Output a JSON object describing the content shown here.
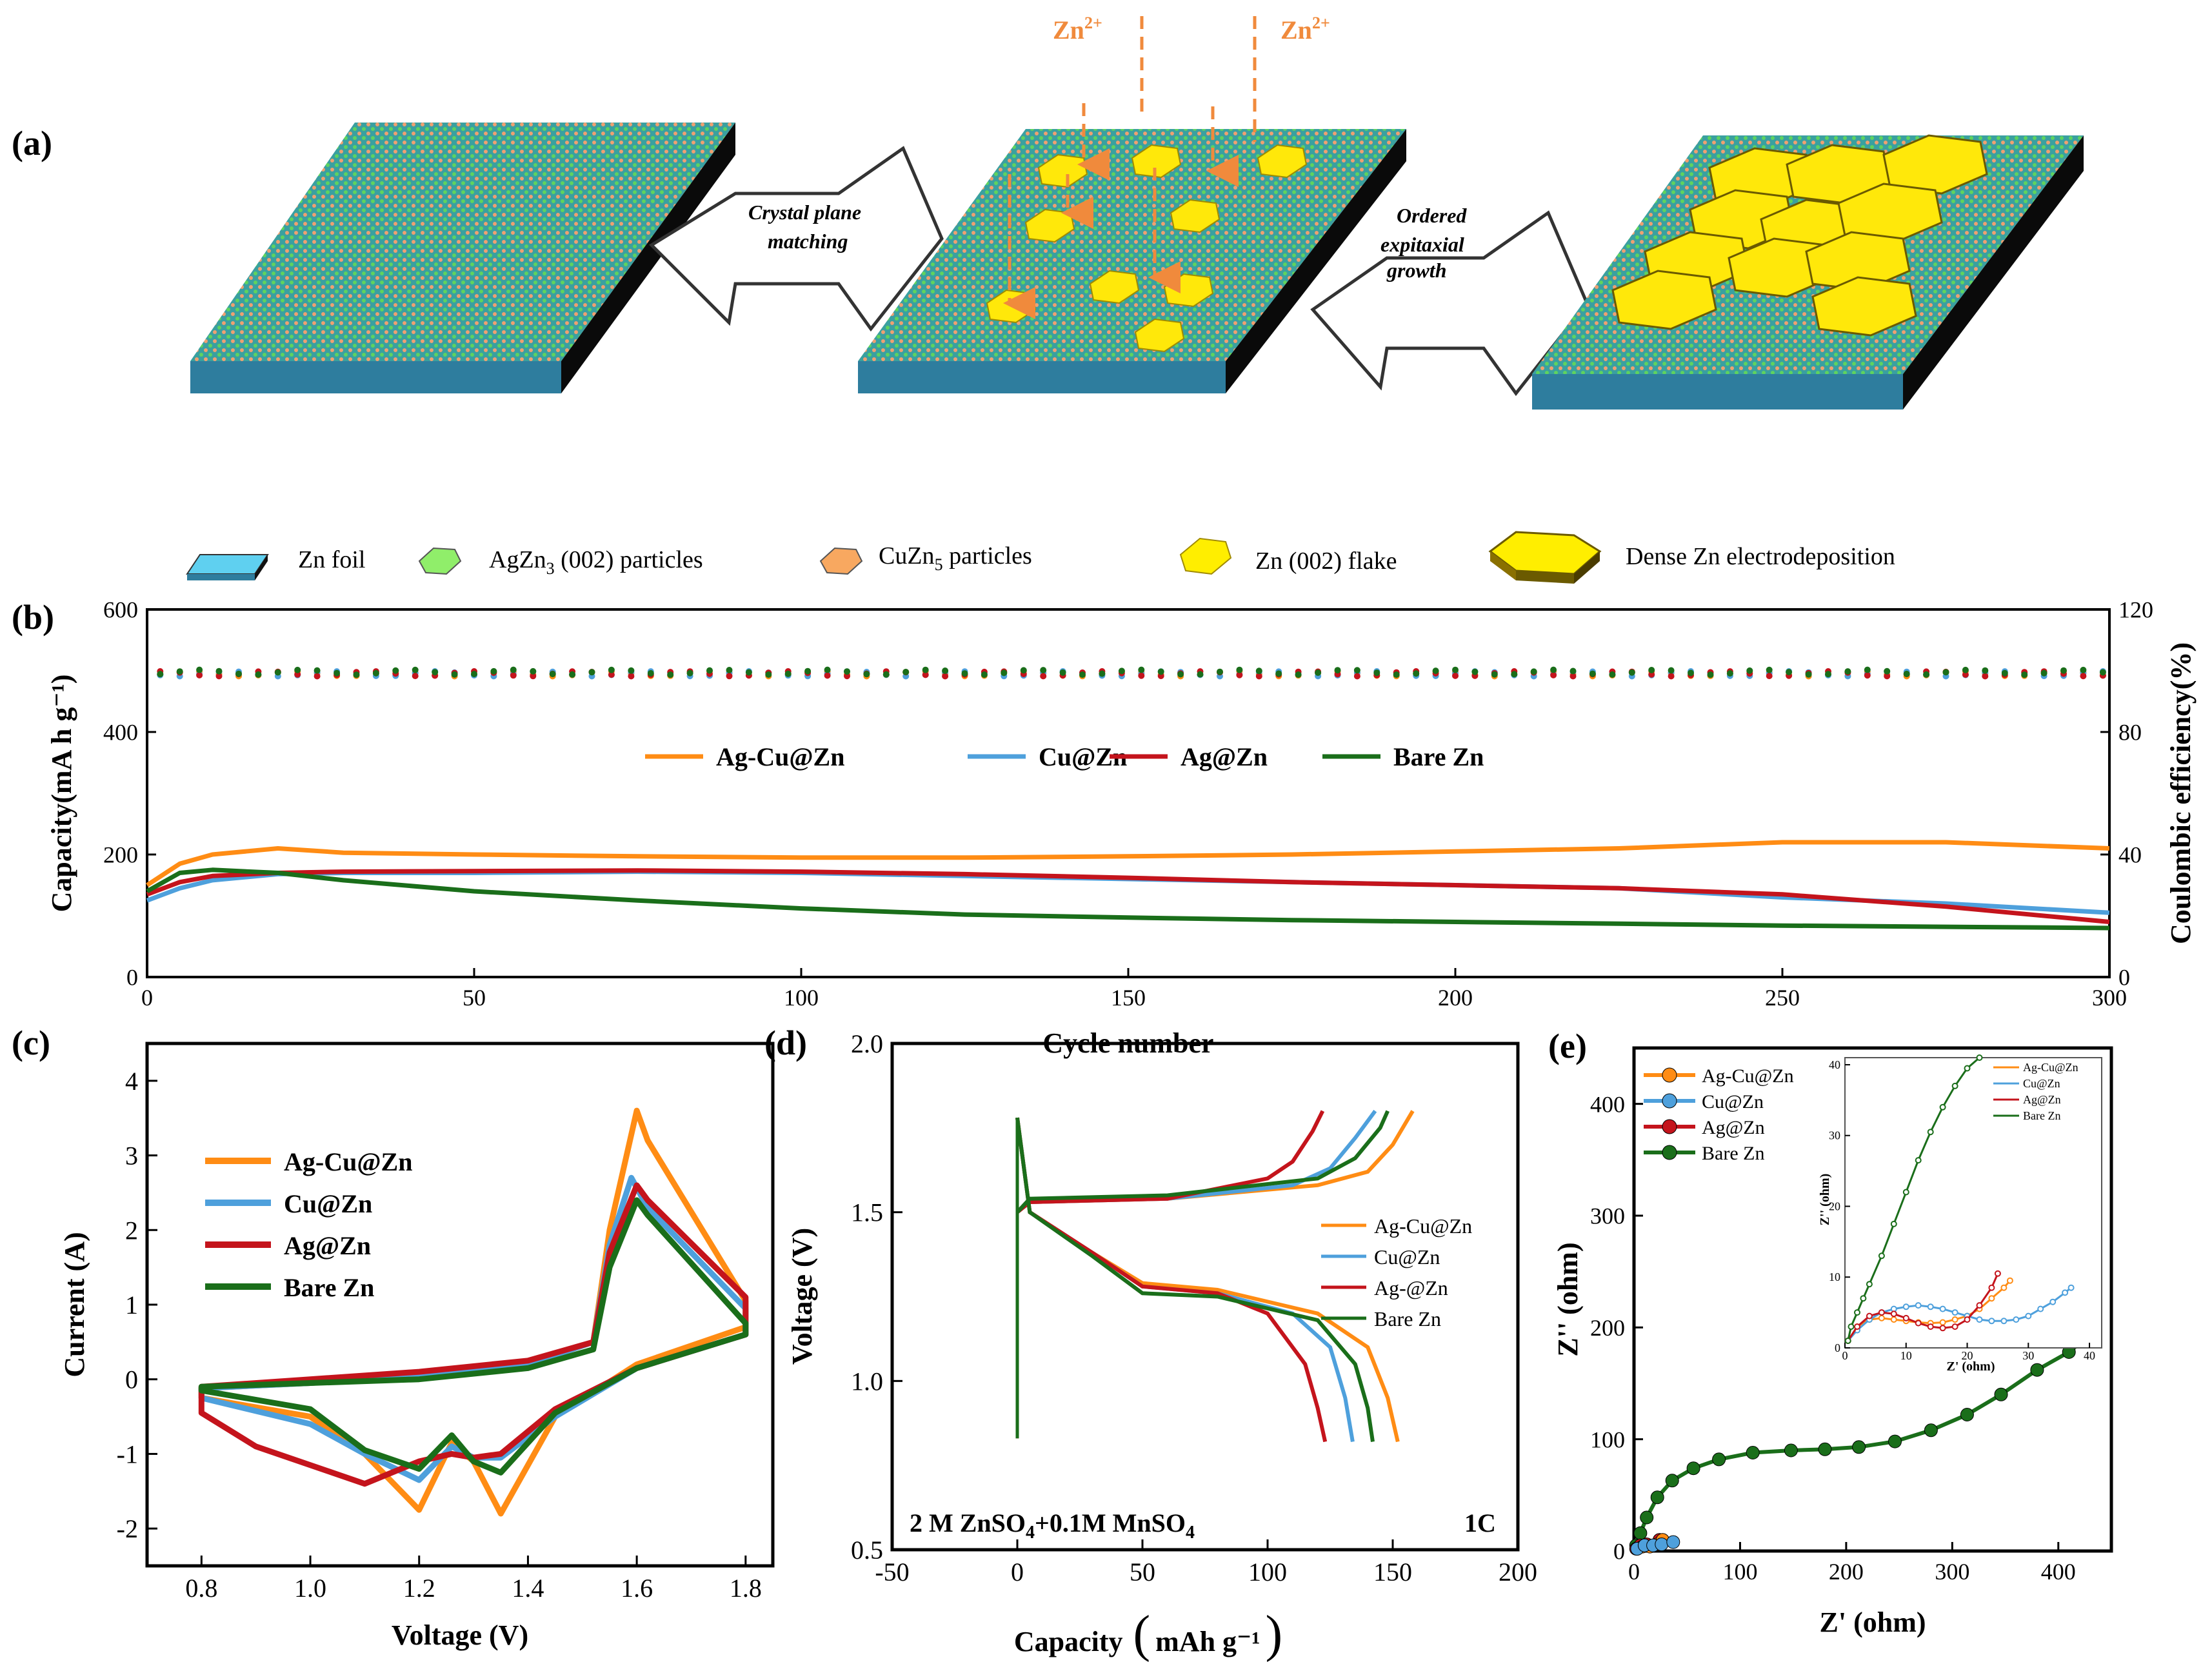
{
  "colors": {
    "ag_cu_zn": "#ff8c14",
    "cu_zn": "#4ea0dc",
    "ag_zn": "#c4141c",
    "bare_zn": "#1a6e1a",
    "zn_ion": "#f08a3c",
    "flake": "#ffee00"
  },
  "schematic": {
    "panel_label": "(a)",
    "zn_ion_1": "Zn",
    "zn_ion_2": "Zn",
    "zn_ion_charge": "2+",
    "step1_line1": "Crystal plane",
    "step1_line2": "matching",
    "step2_line1": "Ordered",
    "step2_line2": "expitaxial",
    "step2_line3": "growth",
    "legend": {
      "zn_foil": "Zn foil",
      "agzn3_pre": "AgZn",
      "agzn3_sub": "3",
      "agzn3_post": " (002) particles",
      "cuzn5_pre": "CuZn",
      "cuzn5_sub": "5",
      "cuzn5_post": " particles",
      "zn_flake": "Zn  (002) flake",
      "dense": "Dense Zn electrodeposition"
    },
    "icons": [
      "zn-foil-icon",
      "agzn3-particle-icon",
      "cuzn5-particle-icon",
      "zn-flake-icon",
      "dense-deposit-icon"
    ]
  },
  "chart_data": [
    {
      "panel": "(b)",
      "type": "line",
      "xlabel": "Cycle number",
      "ylabel_left": "Capacity(mA h g⁻¹)",
      "ylabel_right": "Coulombic efficiency(%)",
      "xlim": [
        0,
        300
      ],
      "ylim_left": [
        0,
        600
      ],
      "ylim_right": [
        0,
        120
      ],
      "xticks": [
        "0",
        "50",
        "100",
        "150",
        "200",
        "250",
        "300"
      ],
      "yticks_left": [
        "0",
        "200",
        "400",
        "600"
      ],
      "yticks_right": [
        "0",
        "40",
        "80",
        "120"
      ],
      "legend": [
        "Ag-Cu@Zn",
        "Cu@Zn",
        "Ag@Zn",
        "Bare Zn"
      ],
      "series": [
        {
          "name": "Ag-Cu@Zn",
          "x": [
            0,
            5,
            10,
            20,
            30,
            50,
            75,
            100,
            125,
            150,
            175,
            200,
            225,
            250,
            275,
            300
          ],
          "values": [
            150,
            185,
            200,
            210,
            203,
            200,
            197,
            195,
            195,
            197,
            200,
            205,
            210,
            220,
            220,
            210
          ]
        },
        {
          "name": "Cu@Zn",
          "x": [
            0,
            5,
            10,
            20,
            30,
            50,
            75,
            100,
            125,
            150,
            175,
            200,
            225,
            250,
            275,
            300
          ],
          "values": [
            125,
            145,
            158,
            168,
            170,
            170,
            172,
            170,
            165,
            160,
            155,
            150,
            145,
            130,
            120,
            105
          ]
        },
        {
          "name": "Ag@Zn",
          "x": [
            0,
            5,
            10,
            20,
            30,
            50,
            75,
            100,
            125,
            150,
            175,
            200,
            225,
            250,
            275,
            300
          ],
          "values": [
            135,
            155,
            165,
            170,
            172,
            173,
            174,
            172,
            168,
            162,
            155,
            150,
            145,
            135,
            115,
            90
          ]
        },
        {
          "name": "Bare Zn",
          "x": [
            0,
            5,
            10,
            20,
            30,
            50,
            75,
            100,
            125,
            150,
            175,
            200,
            225,
            250,
            275,
            300
          ],
          "values": [
            140,
            170,
            175,
            170,
            158,
            140,
            125,
            112,
            102,
            97,
            93,
            90,
            87,
            84,
            82,
            80
          ]
        }
      ],
      "ce_series": [
        {
          "name": "Ag-Cu@Zn",
          "ce_percent": 99
        },
        {
          "name": "Cu@Zn",
          "ce_percent": 99
        },
        {
          "name": "Ag@Zn",
          "ce_percent": 99
        },
        {
          "name": "Bare Zn",
          "ce_percent": 99.5
        }
      ]
    },
    {
      "panel": "(c)",
      "type": "line",
      "xlabel": "Voltage (V)",
      "ylabel": "Current  (A)",
      "xlim": [
        0.7,
        1.85
      ],
      "ylim": [
        -2.5,
        4.5
      ],
      "xticks": [
        "0.8",
        "1.0",
        "1.2",
        "1.4",
        "1.6",
        "1.8"
      ],
      "yticks": [
        "-2",
        "-1",
        "0",
        "1",
        "2",
        "3",
        "4"
      ],
      "legend": [
        "Ag-Cu@Zn",
        "Cu@Zn",
        "Ag@Zn",
        "Bare Zn"
      ],
      "series": [
        {
          "name": "Ag-Cu@Zn",
          "x": [
            0.8,
            1.0,
            1.1,
            1.2,
            1.26,
            1.3,
            1.35,
            1.45,
            1.6,
            1.8,
            1.8,
            1.62,
            1.6,
            1.55,
            1.52,
            1.4,
            1.2,
            1.0,
            0.8
          ],
          "values": [
            -0.25,
            -0.5,
            -1.0,
            -1.75,
            -0.85,
            -1.1,
            -1.8,
            -0.5,
            0.2,
            0.7,
            1.05,
            3.2,
            3.6,
            2.0,
            0.5,
            0.2,
            0.05,
            -0.05,
            -0.12
          ]
        },
        {
          "name": "Cu@Zn",
          "x": [
            0.8,
            1.0,
            1.1,
            1.2,
            1.26,
            1.3,
            1.35,
            1.45,
            1.6,
            1.8,
            1.8,
            1.62,
            1.59,
            1.55,
            1.52,
            1.4,
            1.2,
            1.0,
            0.8
          ],
          "values": [
            -0.25,
            -0.6,
            -1.0,
            -1.35,
            -0.9,
            -1.05,
            -1.05,
            -0.5,
            0.15,
            0.6,
            0.95,
            2.3,
            2.7,
            1.8,
            0.5,
            0.2,
            0.05,
            -0.05,
            -0.12
          ]
        },
        {
          "name": "Ag@Zn",
          "x": [
            0.8,
            0.9,
            1.1,
            1.2,
            1.26,
            1.3,
            1.35,
            1.45,
            1.6,
            1.8,
            1.8,
            1.62,
            1.6,
            1.55,
            1.52,
            1.4,
            1.2,
            1.0,
            0.8
          ],
          "values": [
            -0.45,
            -0.9,
            -1.4,
            -1.1,
            -1.0,
            -1.05,
            -1.0,
            -0.4,
            0.15,
            0.6,
            1.1,
            2.4,
            2.6,
            1.7,
            0.5,
            0.25,
            0.1,
            0.0,
            -0.1
          ]
        },
        {
          "name": "Bare Zn",
          "x": [
            0.8,
            1.0,
            1.1,
            1.2,
            1.26,
            1.3,
            1.35,
            1.45,
            1.6,
            1.8,
            1.8,
            1.62,
            1.6,
            1.55,
            1.52,
            1.4,
            1.2,
            1.0,
            0.8
          ],
          "values": [
            -0.15,
            -0.4,
            -0.95,
            -1.2,
            -0.75,
            -1.1,
            -1.25,
            -0.45,
            0.15,
            0.6,
            0.75,
            2.2,
            2.4,
            1.5,
            0.4,
            0.15,
            0.0,
            -0.05,
            -0.1
          ]
        }
      ]
    },
    {
      "panel": "(d)",
      "type": "line",
      "xlabel": "Capacity",
      "xlabel_unit": "mAh g⁻¹",
      "ylabel": "Voltage (V)",
      "xlim": [
        -50,
        200
      ],
      "ylim": [
        0.5,
        2.0
      ],
      "xticks": [
        "-50",
        "0",
        "50",
        "100",
        "150",
        "200"
      ],
      "yticks": [
        "0.5",
        "1.0",
        "1.5",
        "2.0"
      ],
      "annotation_electrolyte": "2 M ZnSO",
      "annotation_sub": "4",
      "annotation_rest": "+0.1M MnSO",
      "annotation_sub2": "4",
      "annotation_rate": "1C",
      "legend": [
        "Ag-Cu@Zn",
        "Cu@Zn",
        "Ag-@Zn",
        "Bare Zn"
      ],
      "series": [
        {
          "name": "Ag-Cu@Zn",
          "charge_x": [
            0,
            5,
            60,
            120,
            140,
            150,
            158
          ],
          "charge_y": [
            1.5,
            1.53,
            1.54,
            1.58,
            1.62,
            1.7,
            1.8
          ],
          "discharge_x": [
            0,
            5,
            30,
            50,
            80,
            120,
            140,
            148,
            152
          ],
          "discharge_y": [
            1.78,
            1.5,
            1.38,
            1.29,
            1.27,
            1.2,
            1.1,
            0.95,
            0.82
          ]
        },
        {
          "name": "Cu@Zn",
          "charge_x": [
            0,
            5,
            60,
            110,
            125,
            135,
            143
          ],
          "charge_y": [
            1.5,
            1.53,
            1.54,
            1.58,
            1.63,
            1.72,
            1.8
          ],
          "discharge_x": [
            0,
            5,
            30,
            50,
            80,
            110,
            125,
            131,
            134
          ],
          "discharge_y": [
            1.78,
            1.5,
            1.38,
            1.28,
            1.26,
            1.2,
            1.1,
            0.95,
            0.82
          ]
        },
        {
          "name": "Ag-@Zn",
          "charge_x": [
            0,
            5,
            60,
            100,
            110,
            118,
            122
          ],
          "charge_y": [
            1.5,
            1.53,
            1.54,
            1.6,
            1.65,
            1.74,
            1.8
          ],
          "discharge_x": [
            0,
            5,
            30,
            50,
            80,
            100,
            115,
            120,
            123
          ],
          "discharge_y": [
            1.78,
            1.5,
            1.38,
            1.28,
            1.26,
            1.2,
            1.05,
            0.92,
            0.82
          ]
        },
        {
          "name": "Bare Zn",
          "charge_x": [
            0,
            5,
            60,
            120,
            135,
            145,
            148
          ],
          "charge_y": [
            1.5,
            1.54,
            1.55,
            1.6,
            1.66,
            1.75,
            1.8
          ],
          "discharge_x": [
            0,
            5,
            30,
            50,
            80,
            120,
            135,
            140,
            142
          ],
          "discharge_y": [
            1.78,
            1.5,
            1.37,
            1.26,
            1.25,
            1.18,
            1.05,
            0.92,
            0.82
          ]
        }
      ]
    },
    {
      "panel": "(e)",
      "type": "scatter",
      "xlabel": "Z' (ohm)",
      "ylabel": "Z'' (ohm)",
      "xlim": [
        0,
        450
      ],
      "ylim": [
        0,
        450
      ],
      "xticks": [
        "0",
        "100",
        "200",
        "300",
        "400"
      ],
      "yticks": [
        "0",
        "100",
        "200",
        "300",
        "400"
      ],
      "legend": [
        "Ag-Cu@Zn",
        "Cu@Zn",
        "Ag@Zn",
        "Bare Zn"
      ],
      "series": [
        {
          "name": "Bare Zn",
          "x": [
            2,
            6,
            12,
            22,
            36,
            56,
            80,
            112,
            148,
            180,
            212,
            246,
            280,
            314,
            346,
            380,
            410,
            426
          ],
          "values": [
            5,
            16,
            30,
            48,
            63,
            74,
            82,
            88,
            90,
            91,
            93,
            98,
            108,
            122,
            140,
            162,
            178,
            190
          ]
        },
        {
          "name": "Ag@Zn",
          "x": [
            2,
            6,
            12,
            18,
            24
          ],
          "values": [
            2,
            5,
            6,
            5,
            10
          ]
        },
        {
          "name": "Ag-Cu@Zn",
          "x": [
            3,
            8,
            15,
            22,
            27
          ],
          "values": [
            2,
            4,
            4,
            6,
            10
          ]
        },
        {
          "name": "Cu@Zn",
          "x": [
            3,
            10,
            18,
            26,
            37
          ],
          "values": [
            2,
            5,
            5,
            6,
            8
          ]
        }
      ],
      "inset": {
        "xlabel": "Z' (ohm)",
        "ylabel": "Z'' (ohm)",
        "xlim": [
          0,
          42
        ],
        "ylim": [
          0,
          41
        ],
        "xticks": [
          "0",
          "10",
          "20",
          "30",
          "40"
        ],
        "yticks": [
          "0",
          "10",
          "20",
          "30",
          "40"
        ],
        "legend": [
          "Ag-Cu@Zn",
          "Cu@Zn",
          "Ag@Zn",
          "Bare Zn"
        ],
        "series": [
          {
            "name": "Ag-Cu@Zn",
            "x": [
              0.5,
              2,
              4,
              6,
              8,
              10,
              12,
              14,
              16,
              18,
              20,
              22,
              24,
              26,
              27
            ],
            "values": [
              1,
              3,
              4,
              4.2,
              4,
              3.8,
              3.6,
              3.5,
              3.6,
              4,
              4.5,
              5.5,
              7,
              8.5,
              9.5
            ]
          },
          {
            "name": "Cu@Zn",
            "x": [
              0.5,
              2,
              4,
              6,
              8,
              10,
              12,
              14,
              16,
              18,
              20,
              22,
              24,
              26,
              28,
              30,
              32,
              34,
              36,
              37
            ],
            "values": [
              1,
              2.5,
              4,
              5,
              5.5,
              5.8,
              6,
              5.8,
              5.5,
              5,
              4.5,
              4,
              3.8,
              3.8,
              4,
              4.5,
              5.5,
              6.5,
              7.8,
              8.5
            ]
          },
          {
            "name": "Ag@Zn",
            "x": [
              0.5,
              2,
              4,
              6,
              8,
              10,
              12,
              14,
              16,
              18,
              20,
              22,
              24,
              25
            ],
            "values": [
              1,
              3,
              4.5,
              5,
              4.8,
              4.2,
              3.5,
              3,
              2.8,
              3,
              4,
              6,
              8.5,
              10.5
            ]
          },
          {
            "name": "Bare Zn",
            "x": [
              0.5,
              1,
              2,
              3,
              4,
              6,
              8,
              10,
              12,
              14,
              16,
              18,
              20,
              22
            ],
            "values": [
              1,
              3,
              5,
              7,
              9,
              13,
              17.5,
              22,
              26.5,
              30.5,
              34,
              37,
              39.5,
              41
            ]
          }
        ]
      }
    }
  ]
}
